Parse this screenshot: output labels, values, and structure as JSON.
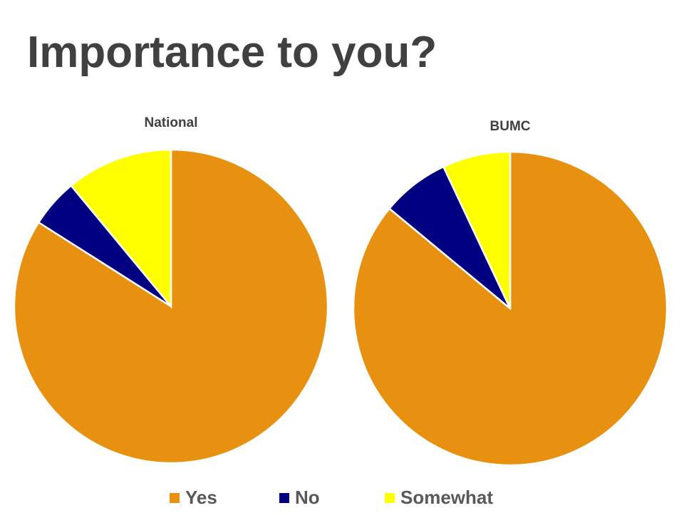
{
  "title": "Importance to you?",
  "legend": [
    "Yes",
    "No",
    "Somewhat"
  ],
  "colors": [
    "#e8900f",
    "#000080",
    "#ffff00"
  ],
  "chart_data": [
    {
      "type": "pie",
      "title": "National",
      "values": [
        84,
        5,
        11
      ]
    },
    {
      "type": "pie",
      "title": "BUMC",
      "values": [
        86,
        7,
        7
      ]
    }
  ]
}
